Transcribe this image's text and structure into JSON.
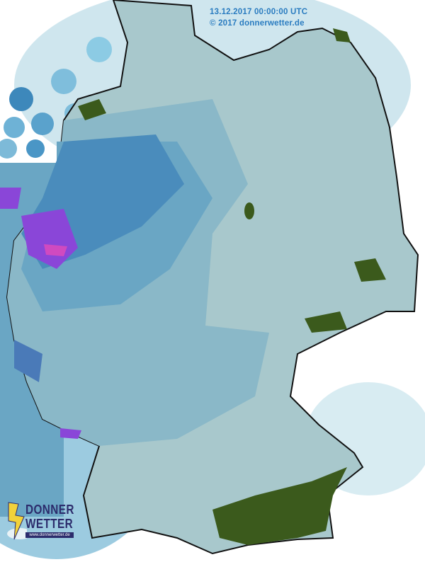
{
  "header": {
    "timestamp": "13.12.2017 00:00:00 UTC",
    "copyright": "© 2017 donnerwetter.de"
  },
  "logo": {
    "line1": "DONNER",
    "line2": "WETTER",
    "url": "www.donnerwetter.de"
  },
  "colors": {
    "land_light": "#a8c8cc",
    "precip_medium": "#6aa6c4",
    "precip_heavy": "#3d7fb4",
    "precip_very_heavy": "#8a46d8",
    "precip_extreme": "#d04ac0",
    "forest_green": "#3b5a1c",
    "outside_light": "#c4e0ea",
    "text": "#2a7cc0"
  }
}
